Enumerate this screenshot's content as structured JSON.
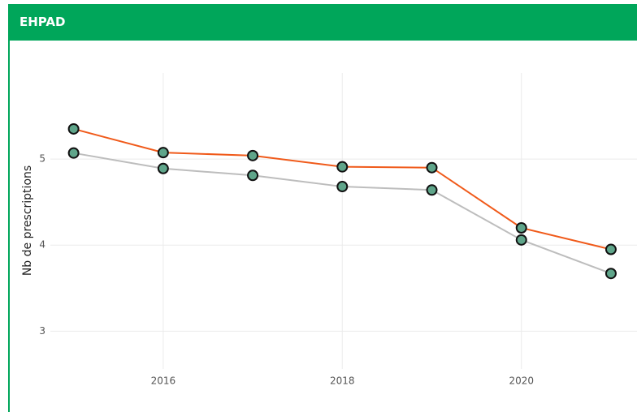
{
  "header": {
    "title": "EHPAD"
  },
  "chart_data": {
    "type": "line",
    "y_label": "Nb de prescriptions",
    "x": [
      2015,
      2016,
      2017,
      2018,
      2019,
      2020,
      2021
    ],
    "series": [
      {
        "color": "#bdbdbd",
        "values": [
          5.07,
          4.89,
          4.81,
          4.68,
          4.64,
          4.06,
          3.67
        ]
      },
      {
        "color": "#f05a1a",
        "values": [
          5.35,
          5.075,
          5.04,
          4.91,
          4.9,
          4.2,
          3.95
        ]
      }
    ],
    "marker_color": "#5fa58a",
    "xlim": [
      2014.45,
      2021.3
    ],
    "xticks": [
      2016,
      2018,
      2020
    ],
    "ylim": [
      2.56,
      6.0
    ],
    "yticks": [
      3,
      4,
      5
    ],
    "grid": true
  }
}
